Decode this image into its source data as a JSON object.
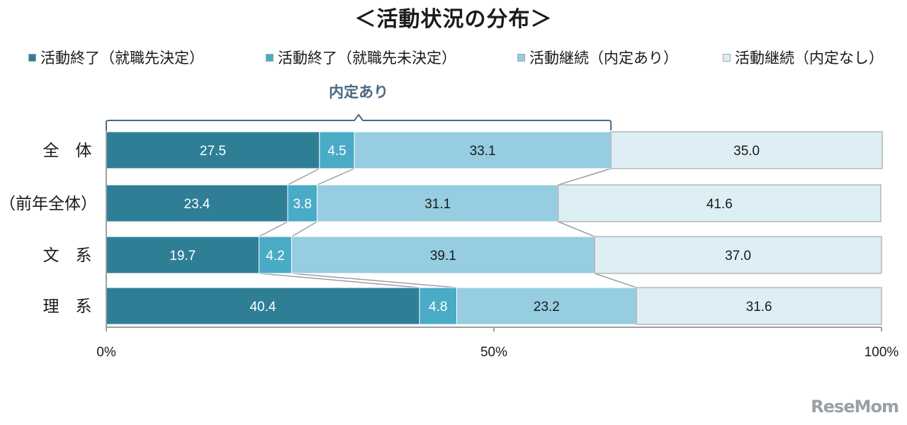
{
  "title": "＜活動状況の分布＞",
  "watermark": "ReseMom",
  "chart_data": {
    "type": "bar",
    "orientation": "horizontal",
    "stacked": true,
    "categories": [
      "全　体",
      "（前年全体）",
      "文　系",
      "理　系"
    ],
    "series": [
      {
        "name": "活動終了（就職先決定）",
        "values": [
          27.5,
          23.4,
          19.7,
          40.4
        ],
        "color": "#2e7f96"
      },
      {
        "name": "活動終了（就職先未決定）",
        "values": [
          4.5,
          3.8,
          4.2,
          4.8
        ],
        "color": "#4aabc7"
      },
      {
        "name": "活動継続（内定あり）",
        "values": [
          33.1,
          31.1,
          39.1,
          23.2
        ],
        "color": "#96cde0"
      },
      {
        "name": "活動継続（内定なし）",
        "values": [
          35.0,
          41.6,
          37.0,
          31.6
        ],
        "color": "#ddeef4"
      }
    ],
    "xlim": [
      0,
      100
    ],
    "xticks": [
      "0%",
      "50%",
      "100%"
    ],
    "legend_position": "top",
    "annotation": "内定あり"
  }
}
